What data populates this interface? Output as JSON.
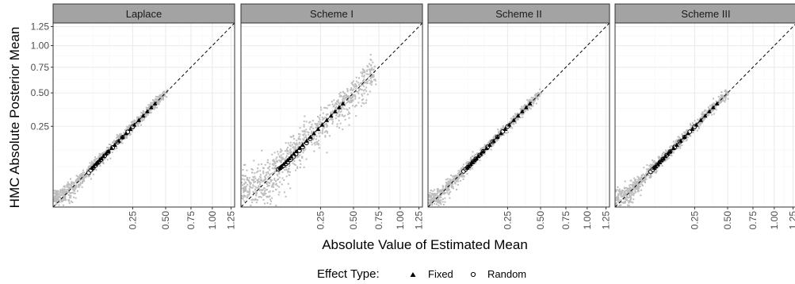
{
  "chart_data": {
    "type": "scatter",
    "facets": [
      "Laplace",
      "Scheme I",
      "Scheme II",
      "Scheme III"
    ],
    "xlabel": "Absolute Value of Estimated Mean",
    "ylabel": "HMC Absolute Posterior Mean",
    "x_ticks": [
      "0.25",
      "0.50",
      "0.75",
      "1.00",
      "1.25"
    ],
    "y_ticks": [
      "0.25",
      "0.50",
      "0.75",
      "1.00",
      "1.25"
    ],
    "scale": "sqrt",
    "xlim": [
      0,
      1.3
    ],
    "ylim": [
      0,
      1.3
    ],
    "reference_line": "y = x (dashed)",
    "grid": true,
    "legend": {
      "title": "Effect Type:",
      "position": "bottom",
      "entries": [
        {
          "label": "Fixed",
          "shape": "triangle"
        },
        {
          "label": "Random",
          "shape": "open-circle"
        }
      ]
    },
    "series": [
      {
        "name": "Fixed",
        "panels": [
          {
            "facet": "Laplace",
            "x": [
              0.06,
              0.065,
              0.072,
              0.078,
              0.085,
              0.092,
              0.1,
              0.11,
              0.12,
              0.135,
              0.15,
              0.17,
              0.19,
              0.21,
              0.235,
              0.26,
              0.29,
              0.32,
              0.35,
              0.38,
              0.41
            ],
            "y": [
              0.058,
              0.063,
              0.07,
              0.076,
              0.083,
              0.09,
              0.098,
              0.108,
              0.118,
              0.132,
              0.147,
              0.167,
              0.187,
              0.207,
              0.232,
              0.258,
              0.288,
              0.318,
              0.349,
              0.379,
              0.409
            ]
          },
          {
            "facet": "Scheme I",
            "x": [
              0.06,
              0.065,
              0.072,
              0.078,
              0.085,
              0.092,
              0.1,
              0.11,
              0.12,
              0.135,
              0.15,
              0.17,
              0.19,
              0.21,
              0.235,
              0.26,
              0.29,
              0.32,
              0.35,
              0.38,
              0.41
            ],
            "y": [
              0.058,
              0.063,
              0.07,
              0.076,
              0.083,
              0.09,
              0.098,
              0.108,
              0.118,
              0.132,
              0.147,
              0.167,
              0.187,
              0.207,
              0.232,
              0.258,
              0.288,
              0.318,
              0.349,
              0.379,
              0.409
            ]
          },
          {
            "facet": "Scheme II",
            "x": [
              0.06,
              0.065,
              0.072,
              0.078,
              0.085,
              0.092,
              0.1,
              0.11,
              0.12,
              0.135,
              0.15,
              0.17,
              0.19,
              0.21,
              0.235,
              0.26,
              0.29,
              0.32,
              0.35,
              0.38,
              0.41
            ],
            "y": [
              0.058,
              0.063,
              0.07,
              0.076,
              0.083,
              0.09,
              0.098,
              0.108,
              0.118,
              0.132,
              0.147,
              0.167,
              0.187,
              0.207,
              0.232,
              0.258,
              0.288,
              0.318,
              0.349,
              0.379,
              0.409
            ]
          },
          {
            "facet": "Scheme III",
            "x": [
              0.06,
              0.065,
              0.072,
              0.078,
              0.085,
              0.092,
              0.1,
              0.11,
              0.12,
              0.135,
              0.15,
              0.17,
              0.19,
              0.21,
              0.235,
              0.26,
              0.29,
              0.32,
              0.35,
              0.38,
              0.41
            ],
            "y": [
              0.058,
              0.063,
              0.07,
              0.076,
              0.083,
              0.09,
              0.098,
              0.108,
              0.118,
              0.132,
              0.147,
              0.167,
              0.187,
              0.207,
              0.232,
              0.258,
              0.288,
              0.318,
              0.349,
              0.379,
              0.409
            ]
          }
        ]
      },
      {
        "name": "Random",
        "panels": [
          {
            "facet": "Laplace",
            "x": [
              0.05,
              0.056,
              0.062,
              0.07,
              0.08,
              0.09,
              0.105,
              0.12,
              0.14,
              0.165,
              0.19,
              0.22,
              0.25
            ],
            "y": [
              0.045,
              0.052,
              0.058,
              0.066,
              0.076,
              0.086,
              0.101,
              0.116,
              0.136,
              0.162,
              0.187,
              0.217,
              0.248
            ]
          },
          {
            "facet": "Scheme I",
            "x": [
              0.055,
              0.06,
              0.066,
              0.072,
              0.08,
              0.088,
              0.097,
              0.108,
              0.12,
              0.135,
              0.15,
              0.17,
              0.19
            ],
            "y": [
              0.055,
              0.058,
              0.062,
              0.066,
              0.072,
              0.078,
              0.086,
              0.096,
              0.108,
              0.122,
              0.138,
              0.158,
              0.18
            ]
          },
          {
            "facet": "Scheme II",
            "x": [
              0.05,
              0.056,
              0.062,
              0.07,
              0.08,
              0.09,
              0.105,
              0.12,
              0.14,
              0.165,
              0.19,
              0.22,
              0.25
            ],
            "y": [
              0.049,
              0.055,
              0.061,
              0.069,
              0.079,
              0.089,
              0.104,
              0.119,
              0.139,
              0.164,
              0.189,
              0.219,
              0.249
            ]
          },
          {
            "facet": "Scheme III",
            "x": [
              0.05,
              0.056,
              0.062,
              0.07,
              0.08,
              0.09,
              0.105,
              0.12,
              0.14,
              0.165,
              0.19,
              0.22,
              0.25
            ],
            "y": [
              0.048,
              0.054,
              0.06,
              0.068,
              0.078,
              0.088,
              0.103,
              0.118,
              0.138,
              0.163,
              0.188,
              0.218,
              0.248
            ]
          }
        ]
      }
    ],
    "background_cloud": {
      "color": "#bdbdbd",
      "description_of_marks": "dense grey point cloud along diagonal in each panel",
      "panels": [
        {
          "facet": "Laplace",
          "x_range": [
            0.0,
            0.5
          ],
          "spread": 0.01
        },
        {
          "facet": "Scheme I",
          "x_range": [
            0.0,
            0.7
          ],
          "spread": 0.045
        },
        {
          "facet": "Scheme II",
          "x_range": [
            0.0,
            0.5
          ],
          "spread": 0.008
        },
        {
          "facet": "Scheme III",
          "x_range": [
            0.0,
            0.5
          ],
          "spread": 0.01
        }
      ]
    }
  },
  "colors": {
    "strip_bg": "#a3a3a3",
    "panel_border": "#333333",
    "grid_major": "#ebebeb",
    "grid_minor": "#f5f5f5",
    "cloud": "#bdbdbd",
    "points": "#000000"
  }
}
